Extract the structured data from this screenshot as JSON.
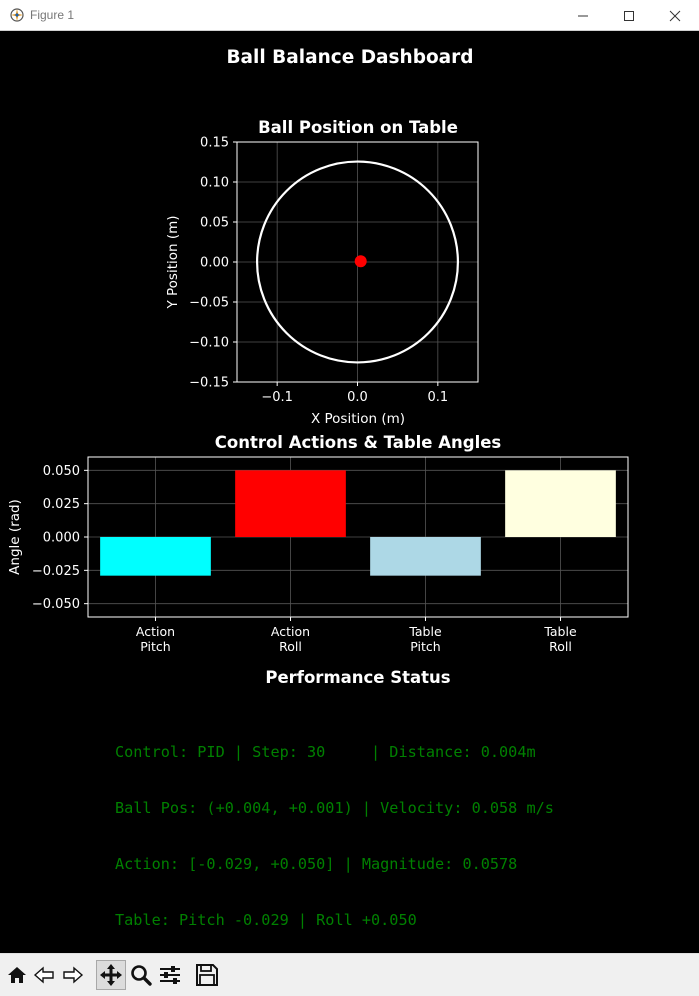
{
  "window": {
    "title": "Figure 1"
  },
  "figure": {
    "title": "Ball Balance Dashboard"
  },
  "position_plot": {
    "title": "Ball Position on Table",
    "xlabel": "X Position (m)",
    "ylabel": "Y Position (m)",
    "xlim": [
      -0.15,
      0.15
    ],
    "ylim": [
      -0.15,
      0.15
    ],
    "xticks": [
      "−0.1",
      "0.0",
      "0.1"
    ],
    "yticks": [
      "0.15",
      "0.10",
      "0.05",
      "0.00",
      "−0.05",
      "−0.10",
      "−0.15"
    ],
    "table_radius": 0.125,
    "ball": {
      "x": 0.004,
      "y": 0.001
    },
    "colors": {
      "circle": "#ffffff",
      "ball": "#ff0000",
      "grid": "#555555"
    }
  },
  "chart_data": {
    "type": "bar",
    "title": "Control Actions & Table Angles",
    "ylabel": "Angle (rad)",
    "categories": [
      "Action\nPitch",
      "Action\nRoll",
      "Table\nPitch",
      "Table\nRoll"
    ],
    "category_lines": [
      [
        "Action",
        "Pitch"
      ],
      [
        "Action",
        "Roll"
      ],
      [
        "Table",
        "Pitch"
      ],
      [
        "Table",
        "Roll"
      ]
    ],
    "values": [
      -0.029,
      0.05,
      -0.029,
      0.05
    ],
    "colors": [
      "#00ffff",
      "#ff0000",
      "#add8e6",
      "#ffffe0"
    ],
    "ylim": [
      -0.06,
      0.06
    ],
    "yticks": [
      "0.050",
      "0.025",
      "0.000",
      "−0.025",
      "−0.050"
    ],
    "grid": true
  },
  "status": {
    "title": "Performance Status",
    "lines": [
      "Control: PID | Step: 30     | Distance: 0.004m",
      "Ball Pos: (+0.004, +0.001) | Velocity: 0.058 m/s",
      "Action: [-0.029, +0.050] | Magnitude: 0.0578",
      "Table: Pitch -0.029 | Roll +0.050"
    ],
    "color": "#008000"
  },
  "toolbar": {
    "buttons": [
      "home-icon",
      "back-icon",
      "forward-icon",
      "pan-icon",
      "zoom-icon",
      "configure-icon",
      "save-icon"
    ]
  }
}
